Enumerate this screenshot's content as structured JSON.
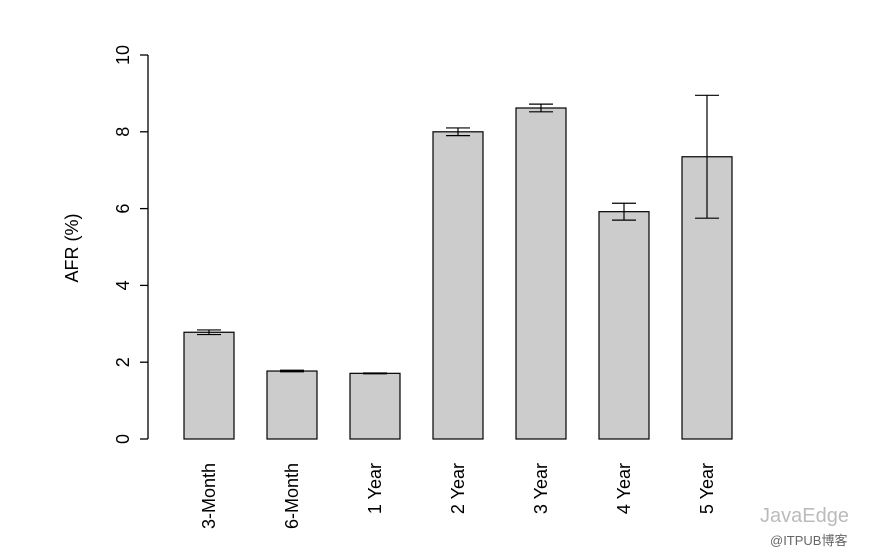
{
  "chart_data": {
    "type": "bar",
    "y_label": "AFR (%)",
    "categories": [
      "3-Month",
      "6-Month",
      "1 Year",
      "2 Year",
      "3 Year",
      "4 Year",
      "5 Year"
    ],
    "values": [
      2.78,
      1.77,
      1.71,
      8.0,
      8.62,
      5.92,
      7.35
    ],
    "errors": [
      0.06,
      0.02,
      0.01,
      0.1,
      0.1,
      0.22,
      1.6
    ],
    "color": "#cccccc",
    "ylim": [
      0,
      10
    ],
    "yticks": [
      0,
      2,
      4,
      6,
      8,
      10
    ],
    "grid": false
  },
  "watermark": {
    "name": "JavaEdge",
    "source": "@ITPUB博客"
  }
}
